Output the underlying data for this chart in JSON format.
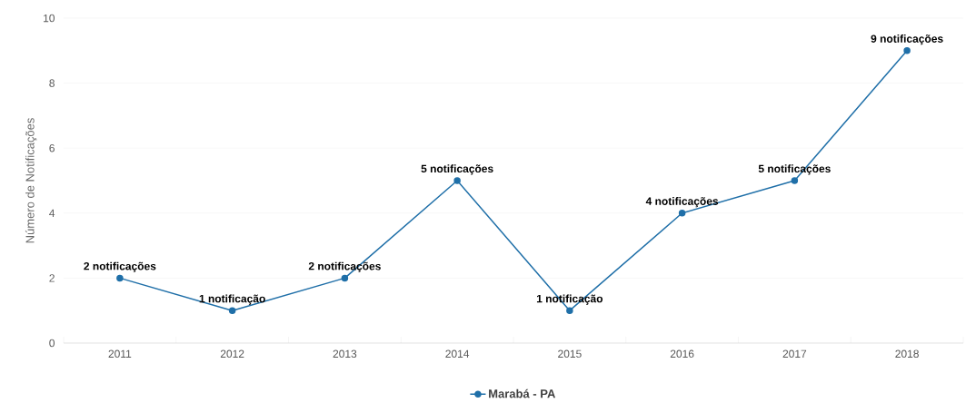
{
  "chart_data": {
    "type": "line",
    "ylabel": "Número de Notificações",
    "categories": [
      "2011",
      "2012",
      "2013",
      "2014",
      "2015",
      "2016",
      "2017",
      "2018"
    ],
    "series": [
      {
        "name": "Marabá - PA",
        "color": "#1f6fa8",
        "values": [
          2,
          1,
          2,
          5,
          1,
          4,
          5,
          9
        ],
        "value_labels": [
          "2 notificações",
          "1 notificação",
          "2 notificações",
          "5 notificações",
          "1 notificação",
          "4 notificações",
          "5 notificações",
          "9 notificações"
        ]
      }
    ],
    "ylim": [
      0,
      10
    ],
    "yticks": [
      0,
      2,
      4,
      6,
      8,
      10
    ],
    "grid": "y",
    "legend": "bottom",
    "marker": "circle",
    "line_style": "solid"
  }
}
